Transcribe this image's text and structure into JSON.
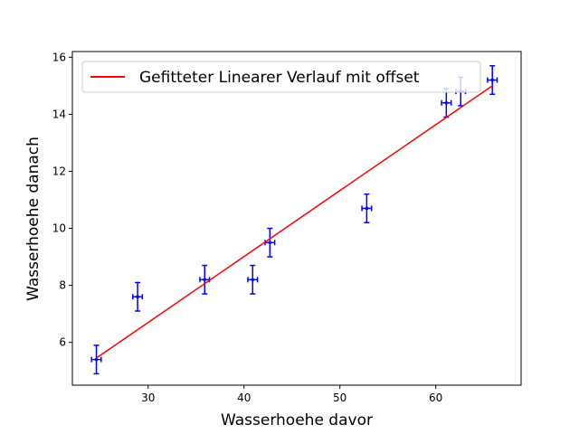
{
  "chart_data": {
    "type": "scatter",
    "title": "",
    "xlabel": "Wasserhoehe davor",
    "ylabel": "Wasserhoehe danach",
    "xlim": [
      22.1,
      68.9
    ],
    "ylim": [
      4.5,
      16.2
    ],
    "xticks": [
      30,
      40,
      50,
      60
    ],
    "yticks": [
      6,
      8,
      10,
      12,
      14,
      16
    ],
    "grid": false,
    "legend_position": "top-left",
    "points": [
      {
        "x": 24.6,
        "y": 5.4,
        "xerr": 0.5,
        "yerr": 0.5
      },
      {
        "x": 28.9,
        "y": 7.6,
        "xerr": 0.5,
        "yerr": 0.5
      },
      {
        "x": 35.9,
        "y": 8.2,
        "xerr": 0.5,
        "yerr": 0.5
      },
      {
        "x": 40.9,
        "y": 8.2,
        "xerr": 0.5,
        "yerr": 0.5
      },
      {
        "x": 42.7,
        "y": 9.5,
        "xerr": 0.5,
        "yerr": 0.5
      },
      {
        "x": 52.8,
        "y": 10.7,
        "xerr": 0.5,
        "yerr": 0.5
      },
      {
        "x": 61.1,
        "y": 14.4,
        "xerr": 0.5,
        "yerr": 0.5
      },
      {
        "x": 62.6,
        "y": 14.8,
        "xerr": 0.5,
        "yerr": 0.5
      },
      {
        "x": 65.9,
        "y": 15.2,
        "xerr": 0.5,
        "yerr": 0.5
      }
    ],
    "fit_line": {
      "name": "Gefitteter Linearer Verlauf mit offset",
      "x": [
        24.6,
        65.9
      ],
      "y": [
        5.45,
        15.0
      ]
    },
    "colors": {
      "points": "#0000ff",
      "fit_line": "#ff0000",
      "axes": "#000000",
      "legend_border": "#cccccc"
    }
  }
}
